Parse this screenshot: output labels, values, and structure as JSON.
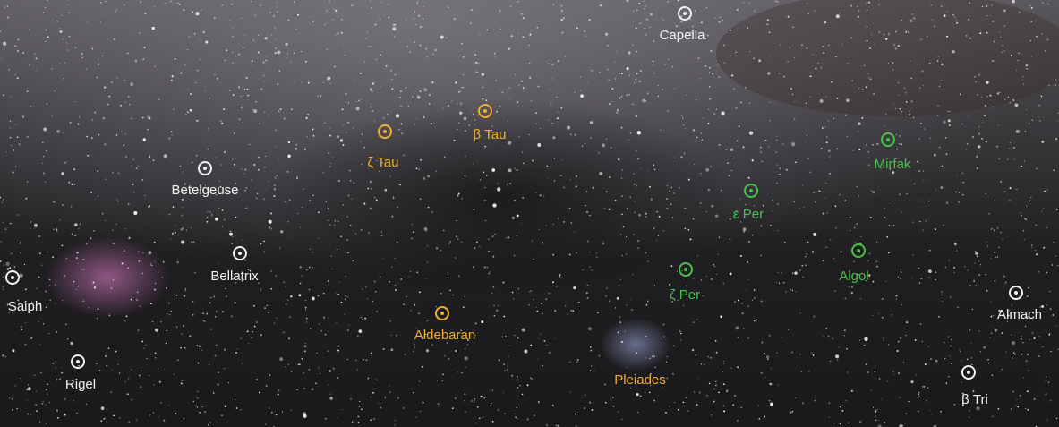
{
  "labels": [
    {
      "name": "Capella"
    },
    {
      "name": "Betelgeuse"
    },
    {
      "name": "Bellatrix"
    },
    {
      "name": "Saiph"
    },
    {
      "name": "Rigel"
    },
    {
      "name": "Almach"
    },
    {
      "name": "β Tri"
    },
    {
      "name": "ζ Tau"
    },
    {
      "name": "β Tau"
    },
    {
      "name": "Aldebaran"
    },
    {
      "name": "Pleiades"
    },
    {
      "name": "Mirfak"
    },
    {
      "name": "ε Per"
    },
    {
      "name": "ζ Per"
    },
    {
      "name": "Algol"
    }
  ]
}
